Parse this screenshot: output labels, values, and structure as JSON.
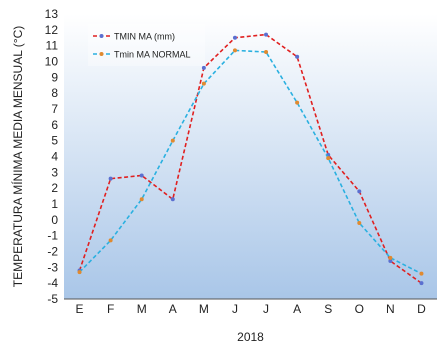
{
  "chart_data": {
    "type": "line",
    "xlabel": "2018",
    "ylabel": "TEMPERATURA MÍNIMA MEDIA MENSUAL (°C)",
    "ylim": [
      -5,
      13
    ],
    "yticks": [
      -5,
      -4,
      -3,
      -2,
      -1,
      0,
      1,
      2,
      3,
      4,
      5,
      6,
      7,
      8,
      9,
      10,
      11,
      12,
      13
    ],
    "categories": [
      "E",
      "F",
      "M",
      "A",
      "M",
      "J",
      "J",
      "A",
      "S",
      "O",
      "N",
      "D"
    ],
    "grid": false,
    "legend_position": "top-left",
    "series": [
      {
        "name": "TMIN MA (mm)",
        "color": "#e02020",
        "marker_color": "#5b6fd0",
        "x": [
          0,
          1,
          2,
          3,
          4,
          5,
          6,
          7,
          8,
          9,
          10,
          11
        ],
        "values": [
          -3.2,
          2.6,
          2.8,
          1.3,
          9.6,
          11.5,
          11.7,
          10.3,
          4.1,
          1.8,
          -2.6,
          -4.0
        ]
      },
      {
        "name": "Tmin MA NORMAL",
        "color": "#2ab0e0",
        "marker_color": "#e08a30",
        "x": [
          0,
          1,
          2,
          3,
          4,
          5,
          6,
          7,
          8,
          9,
          10,
          11
        ],
        "values": [
          -3.3,
          -1.3,
          1.3,
          5.0,
          8.6,
          10.7,
          10.6,
          7.4,
          3.9,
          -0.2,
          -2.4,
          -3.4
        ]
      }
    ]
  }
}
